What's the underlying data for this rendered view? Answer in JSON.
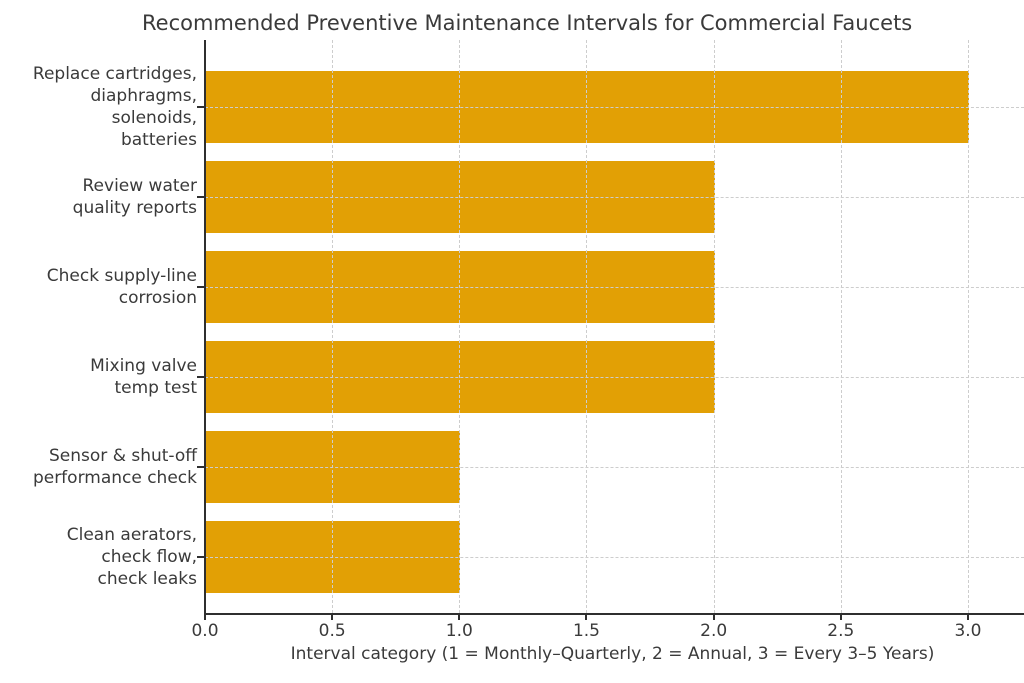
{
  "chart_data": {
    "type": "bar",
    "orientation": "horizontal",
    "title": "Recommended Preventive Maintenance Intervals for Commercial Faucets",
    "xlabel": "Interval category (1 = Monthly–Quarterly, 2 = Annual, 3 = Every 3–5 Years)",
    "categories": [
      "Replace cartridges,\ndiaphragms,\nsolenoids,\nbatteries",
      "Review water\nquality reports",
      "Check supply-line\ncorrosion",
      "Mixing valve\ntemp test",
      "Sensor & shut-off\nperformance check",
      "Clean aerators,\ncheck flow,\ncheck leaks"
    ],
    "values": [
      3,
      2,
      2,
      2,
      1,
      1
    ],
    "xticks": [
      0.0,
      0.5,
      1.0,
      1.5,
      2.0,
      2.5,
      3.0
    ],
    "xtick_labels": [
      "0.0",
      "0.5",
      "1.0",
      "1.5",
      "2.0",
      "2.5",
      "3.0"
    ],
    "xlim": [
      0,
      3.22
    ],
    "grid": true,
    "grid_style": "dashed",
    "legend": "none",
    "bar_color": "#e2a005",
    "grid_color": "#cdcdcd",
    "text_color": "#3a3a3a",
    "spine_color": "#2f2f2f"
  }
}
